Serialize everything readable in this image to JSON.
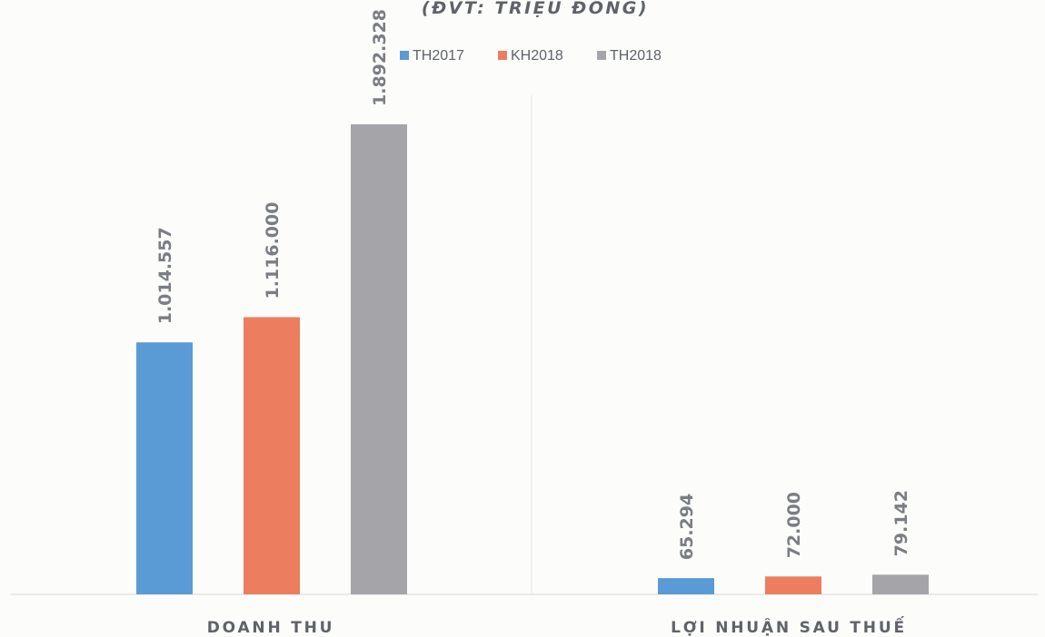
{
  "chart_data": {
    "type": "bar",
    "subtitle": "(ĐVT: TRIỆU ĐỒNG)",
    "categories": [
      "DOANH THU",
      "LỢI NHUẬN SAU THUẾ"
    ],
    "series": [
      {
        "name": "TH2017",
        "color": "#5b9bd5",
        "values": [
          1014557,
          65294
        ],
        "labels": [
          "1.014.557",
          "65.294"
        ]
      },
      {
        "name": "KH2018",
        "color": "#ed7d5f",
        "values": [
          1116000,
          72000
        ],
        "labels": [
          "1.116.000",
          "72.000"
        ]
      },
      {
        "name": "TH2018",
        "color": "#a5a5a9",
        "values": [
          1892328,
          79142
        ],
        "labels": [
          "1.892.328",
          "79.142"
        ]
      }
    ],
    "ylim": [
      0,
      1892328
    ],
    "legend_position": "top",
    "grid": false
  }
}
